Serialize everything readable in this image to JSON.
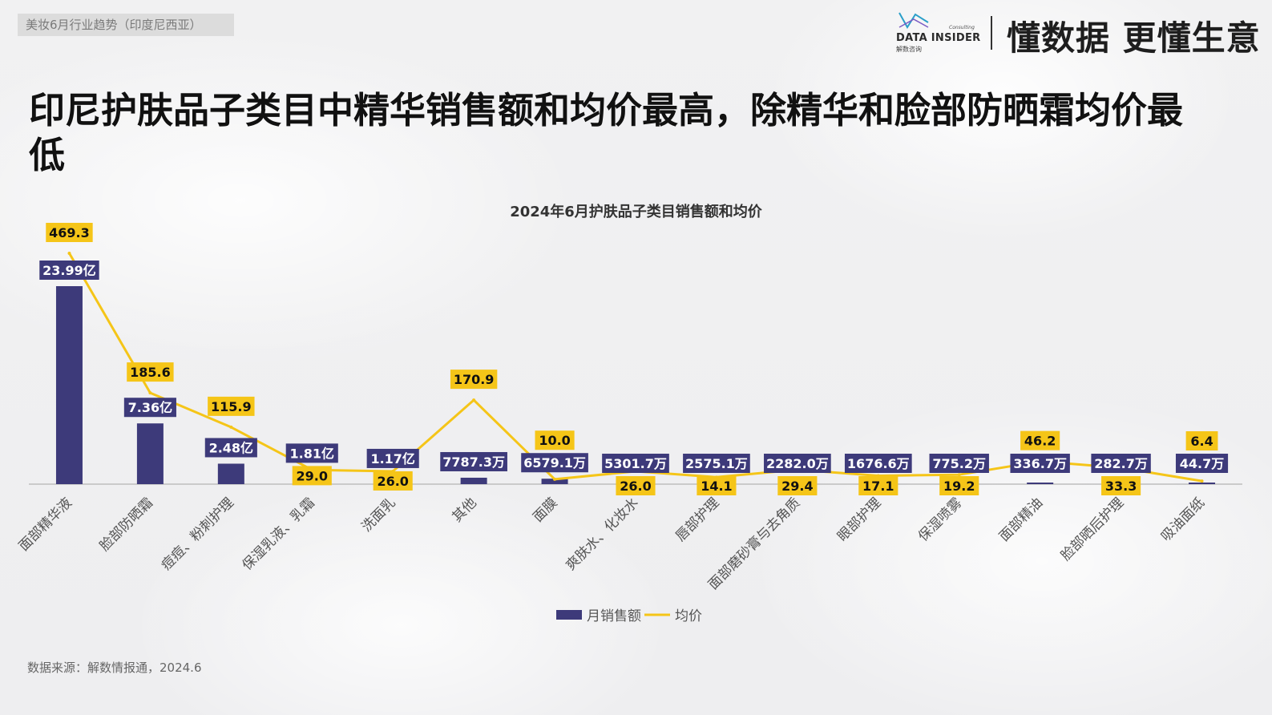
{
  "header": {
    "breadcrumb": "美妆6月行业趋势（印度尼西亚）",
    "logo_text": "DATA INSIDER",
    "logo_sub": "解数咨询",
    "logo_consulting": "Consulting",
    "slogan": "懂数据 更懂生意"
  },
  "headline": "印尼护肤品子类目中精华销售额和均价最高，除精华和脸部防晒霜均价最低",
  "footer": {
    "source": "数据来源：解数情报通，2024.6"
  },
  "colors": {
    "bar": "#3d3a7a",
    "line": "#f5c518",
    "label_bg_bar": "#3d3a7a",
    "label_bg_line": "#f5c518"
  },
  "chart_data": {
    "type": "bar+line",
    "title": "2024年6月护肤品子类目销售额和均价",
    "categories": [
      "面部精华液",
      "脸部防晒霜",
      "痘痘、粉刺护理",
      "保湿乳液、乳霜",
      "洗面乳",
      "其他",
      "面膜",
      "爽肤水、化妆水",
      "唇部护理",
      "面部磨砂膏与去角质",
      "眼部护理",
      "保湿喷雾",
      "面部精油",
      "脸部晒后护理",
      "吸油面纸"
    ],
    "series": [
      {
        "name": "月销售额",
        "type": "bar",
        "values": [
          2399000000,
          736000000,
          248000000,
          181000000,
          117000000,
          77873000,
          65791000,
          53017000,
          25751000,
          22820000,
          16766000,
          7752000,
          3367000,
          2827000,
          447000
        ],
        "labels": [
          "23.99亿",
          "7.36亿",
          "2.48亿",
          "1.81亿",
          "1.17亿",
          "7787.3万",
          "6579.1万",
          "5301.7万",
          "2575.1万",
          "2282.0万",
          "1676.6万",
          "775.2万",
          "336.7万",
          "282.7万",
          "44.7万"
        ]
      },
      {
        "name": "均价",
        "type": "line",
        "values": [
          469.3,
          185.6,
          115.9,
          29.0,
          26.0,
          170.9,
          10.0,
          26.0,
          14.1,
          29.4,
          17.1,
          19.2,
          46.2,
          33.3,
          6.4
        ],
        "labels": [
          "469.3",
          "185.6",
          "115.9",
          "29.0",
          "26.0",
          "170.9",
          "10.0",
          "26.0",
          "14.1",
          "29.4",
          "17.1",
          "19.2",
          "46.2",
          "33.3",
          "6.4"
        ]
      }
    ],
    "legend": [
      "月销售额",
      "均价"
    ],
    "legend_position": "bottom",
    "grid": false
  }
}
